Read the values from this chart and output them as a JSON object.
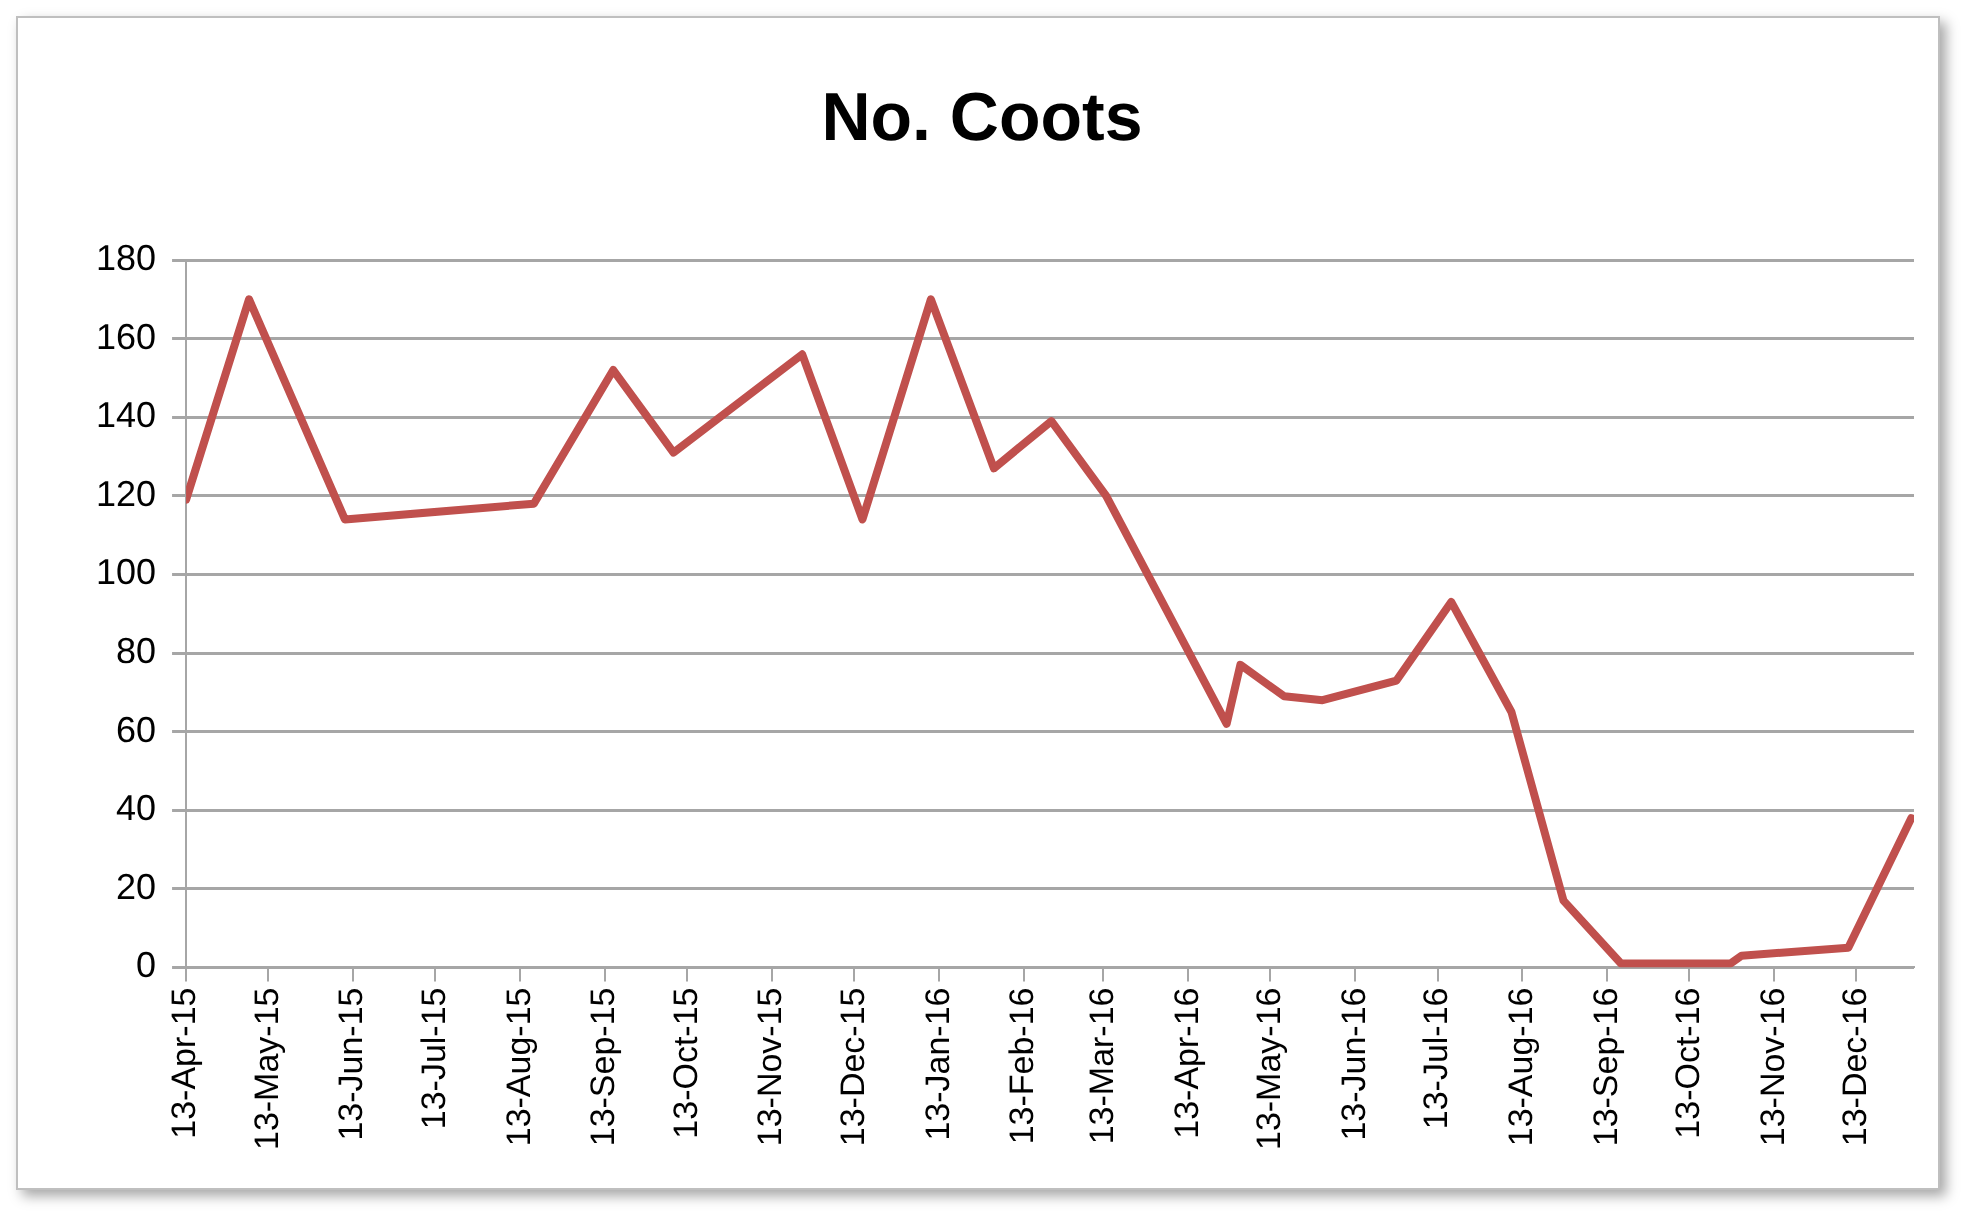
{
  "chart_data": {
    "type": "line",
    "title": "No. Coots",
    "x": [
      "2015-04-13",
      "2015-05-06",
      "2015-06-10",
      "2015-08-18",
      "2015-09-16",
      "2015-10-08",
      "2015-11-24",
      "2015-12-16",
      "2016-01-10",
      "2016-02-02",
      "2016-02-23",
      "2016-03-14",
      "2016-04-27",
      "2016-05-02",
      "2016-05-18",
      "2016-06-01",
      "2016-06-28",
      "2016-07-18",
      "2016-08-09",
      "2016-08-28",
      "2016-09-18",
      "2016-10-28",
      "2016-11-01",
      "2016-12-10",
      "2017-01-02"
    ],
    "series": [
      {
        "color": "#c0504d",
        "values": [
          119,
          170,
          114,
          118,
          152,
          131,
          156,
          114,
          170,
          127,
          139,
          120,
          62,
          77,
          69,
          68,
          73,
          93,
          65,
          17,
          1,
          1,
          3,
          5,
          38
        ]
      }
    ],
    "xlim": [
      "2015-04-13",
      "2017-01-03"
    ],
    "xticks": [
      {
        "value": "2015-04-13",
        "label": "13-Apr-15"
      },
      {
        "value": "2015-05-13",
        "label": "13-May-15"
      },
      {
        "value": "2015-06-13",
        "label": "13-Jun-15"
      },
      {
        "value": "2015-07-13",
        "label": "13-Jul-15"
      },
      {
        "value": "2015-08-13",
        "label": "13-Aug-15"
      },
      {
        "value": "2015-09-13",
        "label": "13-Sep-15"
      },
      {
        "value": "2015-10-13",
        "label": "13-Oct-15"
      },
      {
        "value": "2015-11-13",
        "label": "13-Nov-15"
      },
      {
        "value": "2015-12-13",
        "label": "13-Dec-15"
      },
      {
        "value": "2016-01-13",
        "label": "13-Jan-16"
      },
      {
        "value": "2016-02-13",
        "label": "13-Feb-16"
      },
      {
        "value": "2016-03-13",
        "label": "13-Mar-16"
      },
      {
        "value": "2016-04-13",
        "label": "13-Apr-16"
      },
      {
        "value": "2016-05-13",
        "label": "13-May-16"
      },
      {
        "value": "2016-06-13",
        "label": "13-Jun-16"
      },
      {
        "value": "2016-07-13",
        "label": "13-Jul-16"
      },
      {
        "value": "2016-08-13",
        "label": "13-Aug-16"
      },
      {
        "value": "2016-09-13",
        "label": "13-Sep-16"
      },
      {
        "value": "2016-10-13",
        "label": "13-Oct-16"
      },
      {
        "value": "2016-11-13",
        "label": "13-Nov-16"
      },
      {
        "value": "2016-12-13",
        "label": "13-Dec-16"
      }
    ],
    "ylim": [
      0,
      180
    ],
    "yticks": [
      0,
      20,
      40,
      60,
      80,
      100,
      120,
      140,
      160,
      180
    ],
    "grid": "y",
    "legend": false,
    "marker": "none",
    "line_style": "solid"
  }
}
